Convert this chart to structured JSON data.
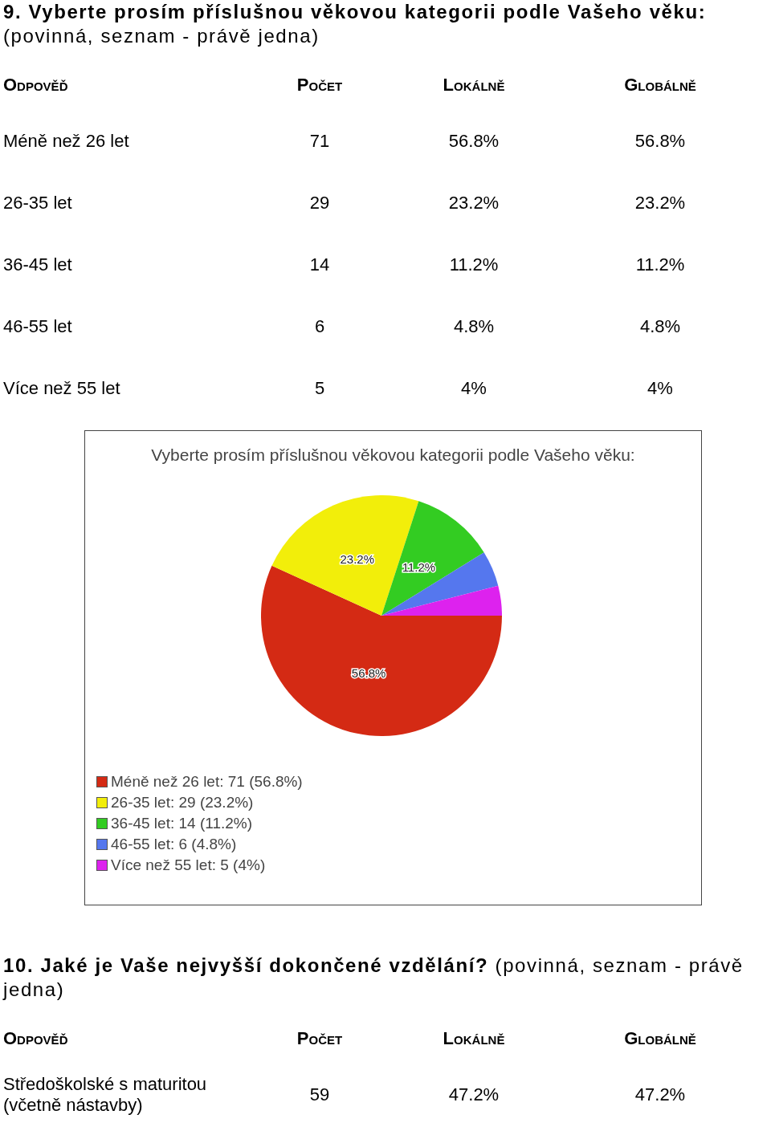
{
  "chart_data": [
    {
      "type": "other",
      "title": "9. Vyberte prosím příslušnou věkovou kategorii podle Vašeho věku:",
      "subtitle": "(povinná, seznam - právě jedna)",
      "xlabel": "Odpověď",
      "categories": [
        "Méně než 26 let",
        "26-35 let",
        "36-45 let",
        "46-55 let",
        "Více než 55 let"
      ],
      "data_labels": true,
      "series": [
        {
          "name": "Počet",
          "values": [
            71,
            29,
            14,
            6,
            5
          ]
        },
        {
          "name": "Lokálně",
          "values": [
            56.8,
            23.2,
            11.2,
            4.8,
            4
          ],
          "value_labels": [
            "56.8%",
            "23.2%",
            "11.2%",
            "4.8%",
            "4%"
          ]
        },
        {
          "name": "Globálně",
          "values": [
            56.8,
            23.2,
            11.2,
            4.8,
            4
          ],
          "value_labels": [
            "56.8%",
            "23.2%",
            "11.2%",
            "4.8%",
            "4%"
          ]
        }
      ]
    },
    {
      "type": "pie",
      "title": "Vyberte prosím příslušnou věkovou kategorii podle Vašeho věku:",
      "categories": [
        "Méně než 26 let: 71 (56.8%)",
        "26-35 let: 29 (23.2%)",
        "36-45 let: 14 (11.2%)",
        "46-55 let: 6 (4.8%)",
        "Více než 55 let: 5 (4%)"
      ],
      "values": [
        56.8,
        23.2,
        11.2,
        4.8,
        4
      ],
      "colors": [
        "#d42a14",
        "#f2ee0a",
        "#33cc22",
        "#5577ee",
        "#dd22ee"
      ],
      "value_labels": [
        "56.8%",
        "23.2%",
        "11.2%",
        null,
        null
      ],
      "legend": "bottom left"
    },
    {
      "type": "other",
      "title": "10. Jaké je Vaše nejvyšší dokončené vzdělání?",
      "subtitle": "(povinná, seznam - právě jedna)",
      "xlabel": "Odpověď",
      "categories": [
        "Středoškolské s maturitou (včetně nástavby)"
      ],
      "data_labels": true,
      "series": [
        {
          "name": "Počet",
          "values": [
            59
          ]
        },
        {
          "name": "Lokálně",
          "values": [
            47.2
          ],
          "value_labels": [
            "47.2%"
          ]
        },
        {
          "name": "Globálně",
          "values": [
            47.2
          ],
          "value_labels": [
            "47.2%"
          ]
        }
      ]
    }
  ]
}
